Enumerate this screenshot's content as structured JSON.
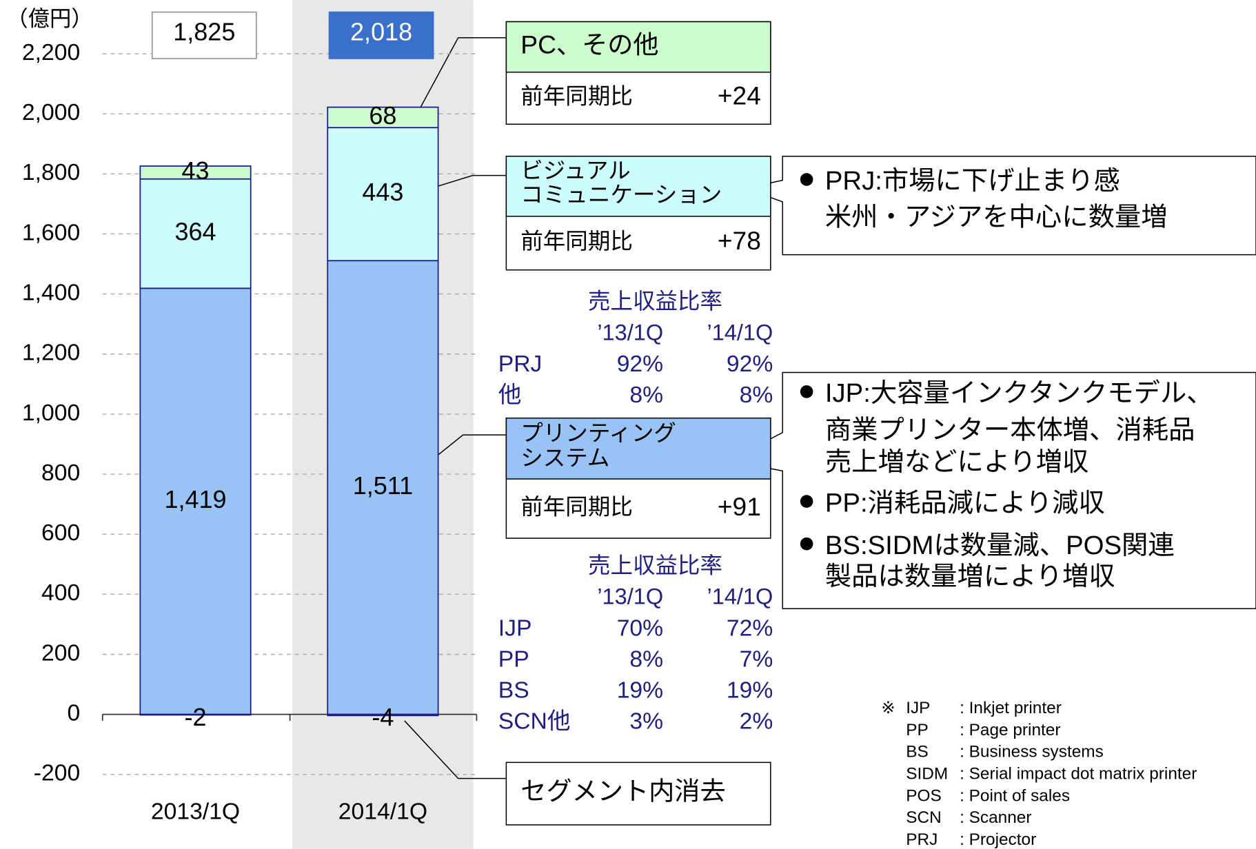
{
  "chart_data": {
    "type": "bar",
    "stacked": true,
    "unit_label": "（億円）",
    "categories": [
      "2013/1Q",
      "2014/1Q"
    ],
    "ylim": [
      -200,
      2200
    ],
    "yticks": [
      {
        "value": -200,
        "label": "-200"
      },
      0,
      {
        "value": 200,
        "label": "200"
      },
      {
        "value": 400,
        "label": "400"
      },
      {
        "value": 600,
        "label": "600"
      },
      {
        "value": 800,
        "label": "800"
      },
      {
        "value": 1000,
        "label": "1,000"
      },
      {
        "value": 1200,
        "label": "1,200"
      },
      {
        "value": 1400,
        "label": "1,400"
      },
      {
        "value": 1600,
        "label": "1,600"
      },
      {
        "value": 1800,
        "label": "1,800"
      },
      {
        "value": 2000,
        "label": "2,000"
      },
      {
        "value": 2200,
        "label": "2,200"
      }
    ],
    "grid": true,
    "series": [
      {
        "color": "#99c3f5",
        "values": [
          1419,
          1511
        ],
        "value_labels": [
          "1,419",
          "1,511"
        ],
        "callout": {
          "title": [
            "プリンティング",
            "システム"
          ],
          "label": "前年同期比",
          "yoy": 91,
          "yoy_label": "+91"
        }
      },
      {
        "color": "#ccfcfc",
        "values": [
          364,
          443
        ],
        "callout": {
          "title": [
            "ビジュアル",
            "コミュニケーション"
          ],
          "label": "前年同期比",
          "yoy": 78,
          "yoy_label": "+78"
        }
      },
      {
        "color": "#ccfccc",
        "values": [
          43,
          68
        ],
        "callout": {
          "title": [
            "PC、その他"
          ],
          "label": "前年同期比",
          "yoy": 24,
          "yoy_label": "+24"
        }
      },
      {
        "color": "#ffffff",
        "values": [
          -2,
          -4
        ],
        "callout": {
          "title": [
            "セグメント内消去"
          ]
        }
      }
    ],
    "totals": {
      "values": [
        1825,
        2018
      ],
      "value_labels": [
        "1,825",
        "2,018"
      ],
      "colors": [
        "#ffffff",
        "#3a6fca"
      ]
    },
    "ratio_tables": [
      {
        "title": "売上収益比率",
        "columns": [
          "’13/1Q",
          "’14/1Q"
        ],
        "rows": [
          [
            "PRJ",
            "92%",
            "92%"
          ],
          [
            "他",
            "8%",
            "8%"
          ]
        ]
      },
      {
        "title": "売上収益比率",
        "columns": [
          "’13/1Q",
          "’14/1Q"
        ],
        "rows": [
          [
            "IJP",
            "70%",
            "72%"
          ],
          [
            "PP",
            "8%",
            "7%"
          ],
          [
            "BS",
            "19%",
            "19%"
          ],
          [
            "SCN他",
            "3%",
            "2%"
          ]
        ]
      }
    ],
    "comments": [
      {
        "bullets": [
          [
            "PRJ:市場に下げ止まり感",
            "米州・アジアを中心に数量増"
          ]
        ]
      },
      {
        "bullets": [
          [
            "IJP:大容量インクタンクモデル、",
            "商業プリンター本体増、消耗品",
            "売上増などにより増収"
          ],
          [
            "PP:消耗品減により減収"
          ],
          [
            "BS:SIDMは数量減、POS関連",
            "製品は数量増により増収"
          ]
        ]
      }
    ],
    "notes": {
      "mark": "※",
      "items": [
        {
          "abbr": "IJP",
          "text": ": Inkjet printer"
        },
        {
          "abbr": "PP",
          "text": ": Page printer"
        },
        {
          "abbr": "BS",
          "text": ": Business systems"
        },
        {
          "abbr": "SIDM",
          "text": ": Serial impact dot matrix printer"
        },
        {
          "abbr": "POS",
          "text": ": Point of sales"
        },
        {
          "abbr": "SCN",
          "text": ": Scanner"
        },
        {
          "abbr": "PRJ",
          "text": ": Projector"
        }
      ]
    }
  }
}
